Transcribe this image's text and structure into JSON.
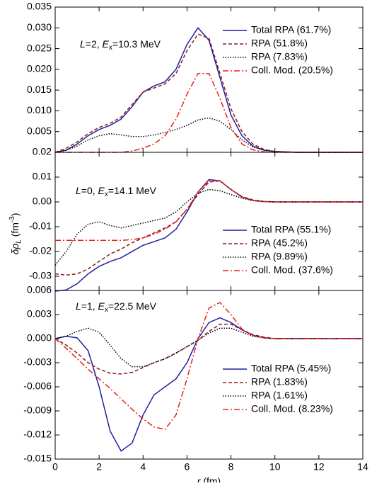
{
  "chart_data": [
    {
      "type": "line",
      "x": [
        0,
        0.5,
        1,
        1.5,
        2,
        2.5,
        3,
        3.5,
        4,
        4.5,
        5,
        5.5,
        6,
        6.5,
        7,
        7.5,
        8,
        8.5,
        9,
        9.5,
        10,
        11,
        12,
        13,
        14
      ],
      "ylim": [
        0,
        0.035
      ],
      "yticks": [
        0.005,
        {
          "value": 0.01,
          "label": "0.010"
        },
        0.015,
        {
          "value": 0.02,
          "label": "0.020"
        },
        0.025,
        {
          "value": 0.03,
          "label": "0.030"
        },
        0.035
      ],
      "annotation": [
        "L",
        "=2, ",
        "E",
        "x",
        "=10.3 MeV"
      ],
      "legend": "upper right",
      "series": [
        {
          "name": "Total RPA (61.7%)",
          "color": "#1f1fa0",
          "style": "solid",
          "values": [
            0,
            0.0005,
            0.002,
            0.004,
            0.0055,
            0.0065,
            0.008,
            0.011,
            0.0145,
            0.016,
            0.017,
            0.02,
            0.026,
            0.03,
            0.027,
            0.018,
            0.009,
            0.004,
            0.0015,
            0.0005,
            0.0002,
            0,
            0,
            0,
            0
          ]
        },
        {
          "name": "RPA (51.8%)",
          "color": "#8b1a1a",
          "style": "dashed",
          "values": [
            0,
            0.001,
            0.0025,
            0.0045,
            0.006,
            0.007,
            0.0085,
            0.0115,
            0.0145,
            0.0155,
            0.0165,
            0.019,
            0.0245,
            0.0285,
            0.0275,
            0.019,
            0.0105,
            0.005,
            0.002,
            0.0007,
            0.0002,
            0,
            0,
            0,
            0
          ]
        },
        {
          "name": "RPA (7.83%)",
          "color": "#000000",
          "style": "dotted",
          "values": [
            0,
            0.0005,
            0.0015,
            0.003,
            0.004,
            0.0045,
            0.0042,
            0.0038,
            0.0038,
            0.0042,
            0.0048,
            0.0055,
            0.0065,
            0.0078,
            0.0083,
            0.0075,
            0.0055,
            0.003,
            0.0013,
            0.0005,
            0.0002,
            0,
            0,
            0,
            0
          ]
        },
        {
          "name": "Coll. Mod. (20.5%)",
          "color": "#e8201a",
          "style": "dashdot",
          "values": [
            0,
            0,
            0,
            0,
            0,
            0,
            0,
            0.0003,
            0.001,
            0.002,
            0.004,
            0.008,
            0.014,
            0.019,
            0.019,
            0.013,
            0.006,
            0.002,
            0.0006,
            0.0001,
            0,
            0,
            0,
            0,
            0
          ]
        }
      ]
    },
    {
      "type": "line",
      "x": [
        0,
        0.5,
        1,
        1.5,
        2,
        2.5,
        3,
        3.5,
        4,
        4.5,
        5,
        5.5,
        6,
        6.5,
        7,
        7.5,
        8,
        8.5,
        9,
        9.5,
        10,
        11,
        12,
        13,
        14
      ],
      "ylim": [
        -0.0357,
        0.02
      ],
      "yticks": [
        0.02,
        0.01,
        {
          "value": 0,
          "label": "0.00"
        },
        -0.01,
        -0.02,
        -0.03
      ],
      "ylabel": [
        "δρ",
        "L",
        " (fm",
        "-3",
        ")"
      ],
      "annotation": [
        "L",
        "=0, ",
        "E",
        "x",
        "=14.1 MeV"
      ],
      "legend": "lower right",
      "series": [
        {
          "name": "Total RPA (55.1%)",
          "color": "#1f1fa0",
          "style": "solid",
          "values": [
            -0.036,
            -0.0355,
            -0.033,
            -0.029,
            -0.026,
            -0.024,
            -0.0225,
            -0.02,
            -0.0175,
            -0.016,
            -0.0145,
            -0.011,
            -0.004,
            0.004,
            0.009,
            0.0085,
            0.005,
            0.002,
            0.0006,
            0.0002,
            0,
            0,
            0,
            0,
            0
          ]
        },
        {
          "name": "RPA (45.2%)",
          "color": "#8b1a1a",
          "style": "dashed",
          "values": [
            -0.029,
            -0.0295,
            -0.029,
            -0.027,
            -0.024,
            -0.021,
            -0.019,
            -0.0165,
            -0.0145,
            -0.0125,
            -0.0105,
            -0.008,
            -0.003,
            0.003,
            0.008,
            0.0085,
            0.005,
            0.0022,
            0.0008,
            0.0002,
            0,
            0,
            0,
            0,
            0
          ]
        },
        {
          "name": "RPA (9.89%)",
          "color": "#000000",
          "style": "dotted",
          "values": [
            -0.0255,
            -0.02,
            -0.013,
            -0.009,
            -0.008,
            -0.0095,
            -0.0105,
            -0.0095,
            -0.0085,
            -0.0075,
            -0.0065,
            -0.004,
            0,
            0.0035,
            0.005,
            0.0045,
            0.003,
            0.0015,
            0.0005,
            0.0001,
            0,
            0,
            0,
            0,
            0
          ]
        },
        {
          "name": "Coll. Mod. (37.6%)",
          "color": "#e8201a",
          "style": "dashdot",
          "values": [
            -0.0155,
            -0.0155,
            -0.0155,
            -0.0155,
            -0.0155,
            -0.0155,
            -0.0155,
            -0.0152,
            -0.0145,
            -0.013,
            -0.011,
            -0.008,
            -0.003,
            0.004,
            0.0085,
            0.0085,
            0.005,
            0.002,
            0.0006,
            0.0001,
            0,
            0,
            0,
            0,
            0
          ]
        }
      ]
    },
    {
      "type": "line",
      "x": [
        0,
        0.5,
        1,
        1.5,
        2,
        2.5,
        3,
        3.5,
        4,
        4.5,
        5,
        5.5,
        6,
        6.5,
        7,
        7.5,
        8,
        8.5,
        9,
        9.5,
        10,
        11,
        12,
        13,
        14
      ],
      "xlim": [
        0,
        14
      ],
      "xticks": [
        0,
        2,
        4,
        6,
        8,
        10,
        12,
        14
      ],
      "xlabel": [
        "r",
        " (fm)"
      ],
      "ylim": [
        -0.015,
        0.006
      ],
      "yticks": [
        0.006,
        0.003,
        {
          "value": 0,
          "label": "0.000"
        },
        -0.003,
        -0.006,
        -0.009,
        -0.012,
        -0.015
      ],
      "annotation": [
        "L",
        "=1, ",
        "E",
        "x",
        "=22.5 MeV"
      ],
      "legend": "lower right",
      "series": [
        {
          "name": "Total RPA (5.45%)",
          "color": "#1f1fa0",
          "style": "solid",
          "values": [
            0,
            0.0003,
            0.0001,
            -0.0015,
            -0.006,
            -0.0115,
            -0.014,
            -0.013,
            -0.0095,
            -0.007,
            -0.006,
            -0.005,
            -0.003,
            0,
            0.002,
            0.0026,
            0.002,
            0.0011,
            0.0004,
            0.0001,
            0,
            0,
            0,
            0,
            0
          ]
        },
        {
          "name": "RPA (1.83%)",
          "color": "#8b1a1a",
          "style": "dashed",
          "values": [
            0,
            -0.0008,
            -0.0018,
            -0.003,
            -0.0038,
            -0.0043,
            -0.0044,
            -0.0042,
            -0.0036,
            -0.003,
            -0.0025,
            -0.0018,
            -0.001,
            -0.0002,
            0.0009,
            0.0018,
            0.0018,
            0.0011,
            0.0005,
            0.0002,
            0,
            0,
            0,
            0,
            0
          ]
        },
        {
          "name": "RPA (1.61%)",
          "color": "#000000",
          "style": "dotted",
          "values": [
            0,
            0.0003,
            0.0009,
            0.0013,
            0.0008,
            -0.0008,
            -0.0025,
            -0.0035,
            -0.0035,
            -0.003,
            -0.0025,
            -0.0018,
            -0.001,
            -0.0002,
            0.0007,
            0.0013,
            0.0013,
            0.0008,
            0.0003,
            0.0001,
            0,
            0,
            0,
            0,
            0
          ]
        },
        {
          "name": "Coll. Mod. (8.23%)",
          "color": "#e8201a",
          "style": "dashdot",
          "values": [
            0,
            -0.0012,
            -0.0025,
            -0.0038,
            -0.005,
            -0.0062,
            -0.0075,
            -0.0088,
            -0.01,
            -0.011,
            -0.0113,
            -0.0095,
            -0.005,
            0,
            0.0038,
            0.0045,
            0.003,
            0.0012,
            0.0004,
            0.0001,
            0,
            0,
            0,
            0,
            0
          ]
        }
      ]
    }
  ]
}
